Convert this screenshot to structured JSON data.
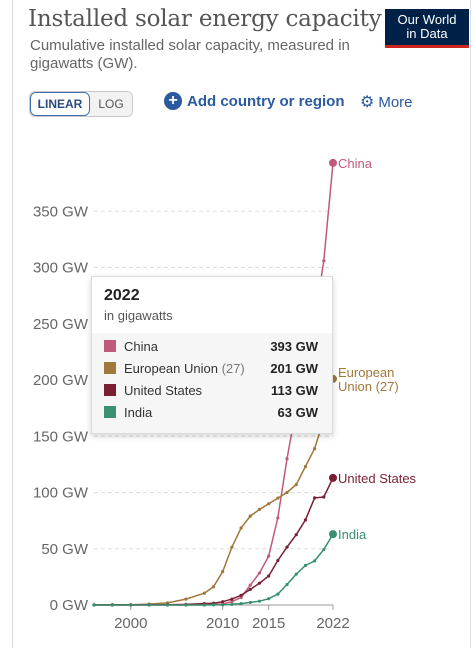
{
  "header": {
    "title": "Installed solar energy capacity",
    "subtitle": "Cumulative installed solar capacity, measured in gigawatts (GW).",
    "logo_line1": "Our World",
    "logo_line2": "in Data"
  },
  "controls": {
    "linear": "LINEAR",
    "log": "LOG",
    "add_label": "Add country or region",
    "more_label": "More"
  },
  "tooltip": {
    "year": "2022",
    "unit": "in gigawatts",
    "rows": [
      {
        "name": "China",
        "paren": "",
        "value": "393 GW",
        "color": "#c05a7a"
      },
      {
        "name": "European Union",
        "paren": "(27)",
        "value": "201 GW",
        "color": "#a0783c"
      },
      {
        "name": "United States",
        "paren": "",
        "value": "113 GW",
        "color": "#7a1f33"
      },
      {
        "name": "India",
        "paren": "",
        "value": "63 GW",
        "color": "#3a9070"
      }
    ]
  },
  "chart_data": {
    "type": "line",
    "title": "Installed solar energy capacity",
    "xlabel": "",
    "ylabel": "",
    "xlim": [
      1996,
      2022
    ],
    "ylim": [
      0,
      400
    ],
    "y_ticks": [
      0,
      50,
      100,
      150,
      200,
      250,
      300,
      350
    ],
    "y_tick_labels": [
      "0 GW",
      "50 GW",
      "100 GW",
      "150 GW",
      "200 GW",
      "250 GW",
      "300 GW",
      "350 GW"
    ],
    "x_ticks": [
      2000,
      2010,
      2015,
      2022
    ],
    "x_tick_labels": [
      "2000",
      "2010",
      "2015",
      "2022"
    ],
    "grid": true,
    "series": [
      {
        "name": "China",
        "label": "China",
        "color": "#c05a7a",
        "x": [
          1996,
          1998,
          2000,
          2002,
          2004,
          2006,
          2008,
          2009,
          2010,
          2011,
          2012,
          2013,
          2014,
          2015,
          2016,
          2017,
          2018,
          2019,
          2020,
          2021,
          2022
        ],
        "y": [
          0,
          0,
          0,
          0,
          0,
          0,
          0.1,
          0.4,
          0.9,
          3,
          6.7,
          17.7,
          28.4,
          43.5,
          77.4,
          130,
          175,
          205,
          253,
          306,
          393
        ]
      },
      {
        "name": "European Union",
        "label_line1": "European",
        "label_line2": "Union (27)",
        "color": "#a0783c",
        "x": [
          1996,
          1998,
          2000,
          2002,
          2004,
          2006,
          2008,
          2009,
          2010,
          2011,
          2012,
          2013,
          2014,
          2015,
          2016,
          2017,
          2018,
          2019,
          2020,
          2021,
          2022
        ],
        "y": [
          0.1,
          0.2,
          0.3,
          0.8,
          1.9,
          5.2,
          10.5,
          16.2,
          29.8,
          51.4,
          68.5,
          79,
          85,
          90,
          95,
          100,
          107,
          123,
          139,
          165,
          201
        ]
      },
      {
        "name": "United States",
        "label": "United States",
        "color": "#7a1f33",
        "x": [
          1996,
          1998,
          2000,
          2002,
          2004,
          2006,
          2008,
          2009,
          2010,
          2011,
          2012,
          2013,
          2014,
          2015,
          2016,
          2017,
          2018,
          2019,
          2020,
          2021,
          2022
        ],
        "y": [
          0.1,
          0.1,
          0.1,
          0.2,
          0.3,
          0.5,
          1.2,
          1.6,
          2.9,
          5.2,
          8.6,
          13.9,
          19.4,
          25.8,
          39.6,
          51.5,
          62.5,
          75.6,
          95.2,
          96,
          113
        ]
      },
      {
        "name": "India",
        "label": "India",
        "color": "#3a9070",
        "x": [
          1996,
          1998,
          2000,
          2002,
          2004,
          2006,
          2008,
          2009,
          2010,
          2011,
          2012,
          2013,
          2014,
          2015,
          2016,
          2017,
          2018,
          2019,
          2020,
          2021,
          2022
        ],
        "y": [
          0,
          0,
          0,
          0,
          0,
          0,
          0,
          0.1,
          0.1,
          0.6,
          1.2,
          2.3,
          3.4,
          5.6,
          9.7,
          18.2,
          27.4,
          35.1,
          39.2,
          49.3,
          63
        ]
      }
    ]
  }
}
